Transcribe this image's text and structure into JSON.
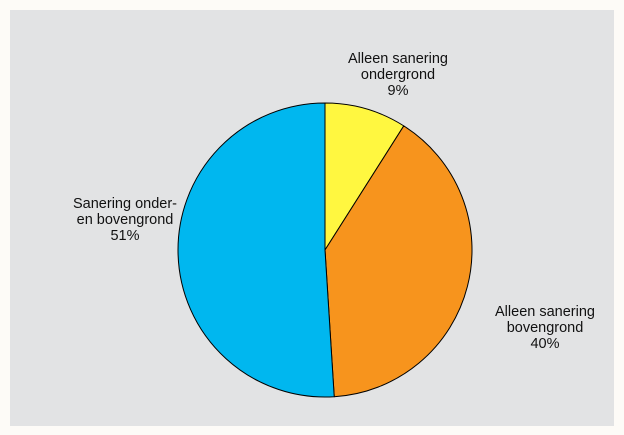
{
  "chart_data": {
    "type": "pie",
    "title": "",
    "slices": [
      {
        "label_lines": [
          "Alleen sanering",
          "ondergrond"
        ],
        "value": 9,
        "value_label": "9%",
        "color": "#fff740"
      },
      {
        "label_lines": [
          "Alleen sanering",
          "bovengrond"
        ],
        "value": 40,
        "value_label": "40%",
        "color": "#f7941d"
      },
      {
        "label_lines": [
          "Sanering onder-",
          "en bovengrond"
        ],
        "value": 51,
        "value_label": "51%",
        "color": "#00b7ef"
      }
    ],
    "start_angle": "top",
    "direction": "clockwise",
    "background": "#e2e3e4",
    "edge_color": "#000000"
  }
}
